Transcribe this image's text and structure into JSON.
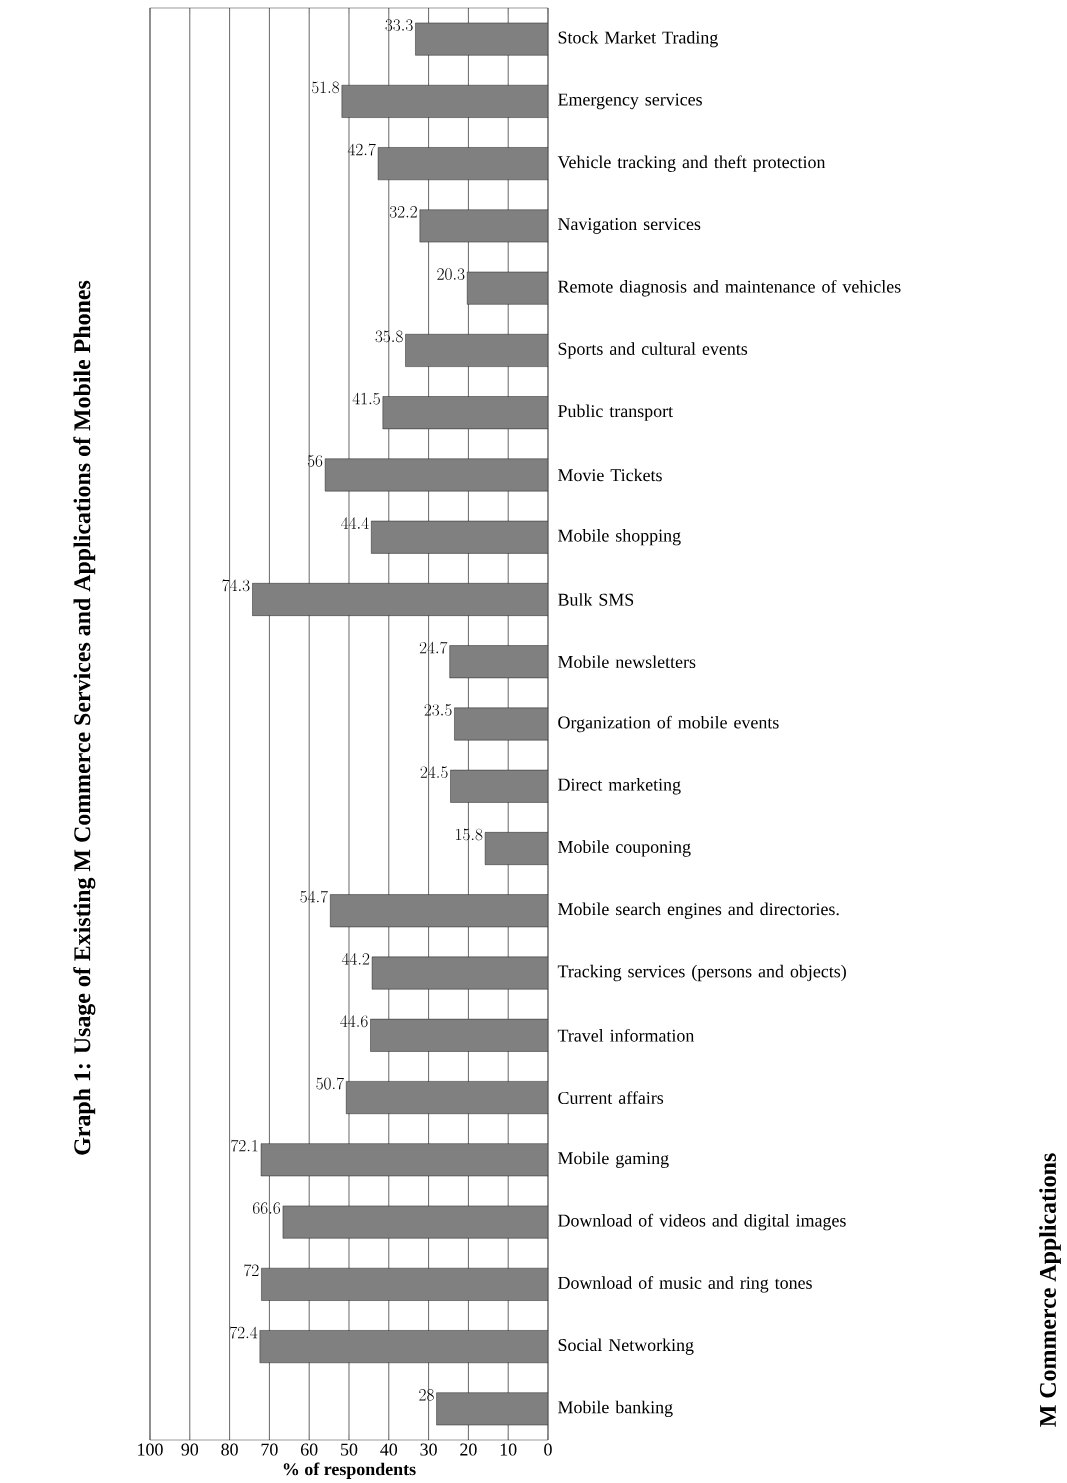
{
  "chart_data": {
    "type": "bar",
    "orientation": "horizontal",
    "title": "Graph 1: Usage of Existing M Commerce Services and Applications of Mobile Phones",
    "xlabel": "% of respondents",
    "annotations": [
      "M Commerce Applications"
    ],
    "categories": [
      "Stock Market Trading",
      "Emergency services",
      "Vehicle tracking and theft protection",
      "Navigation services",
      "Remote diagnosis and maintenance of vehicles",
      "Sports and cultural events",
      "Public transport",
      "Movie Tickets",
      "Mobile shopping",
      "Bulk SMS",
      "Mobile newsletters",
      "Organization of mobile events",
      "Direct marketing",
      "Mobile couponing",
      "Mobile search engines and directories.",
      "Tracking services (persons and objects)",
      "Travel information",
      "Current affairs",
      "Mobile gaming",
      "Download of videos and digital images",
      "Download of music and ring tones",
      "Social Networking",
      "Mobile banking"
    ],
    "values": [
      33.3,
      51.8,
      42.7,
      32.2,
      20.3,
      35.8,
      41.5,
      56,
      44.4,
      74.3,
      24.7,
      23.5,
      24.5,
      15.8,
      54.7,
      44.2,
      44.6,
      50.7,
      72.1,
      66.6,
      72,
      72.4,
      28
    ],
    "color": "#808080",
    "xlim": [
      100,
      0
    ],
    "xticks": [
      100,
      90,
      80,
      70,
      60,
      50,
      40,
      30,
      20,
      10,
      0
    ],
    "grid": "x",
    "data_labels": true
  }
}
